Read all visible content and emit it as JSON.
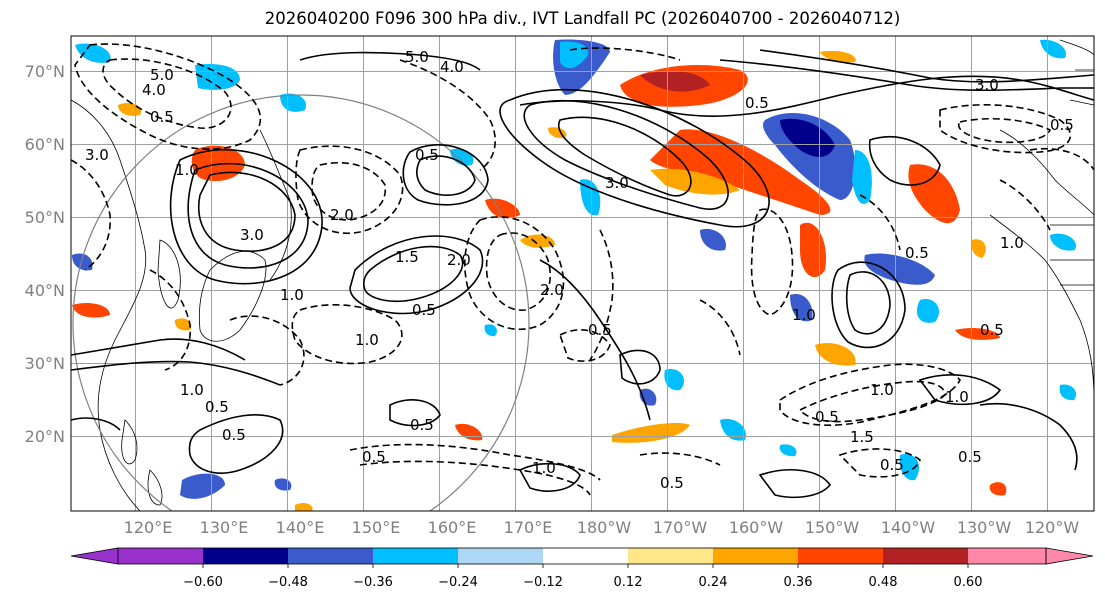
{
  "title": "2026040200 F096 300 hPa div., IVT Landfall PC (2026040700 - 2026040712)",
  "lat_ticks": [
    "70°N",
    "60°N",
    "50°N",
    "40°N",
    "30°N",
    "20°N"
  ],
  "lon_ticks": [
    "120°E",
    "130°E",
    "140°E",
    "150°E",
    "160°E",
    "170°E",
    "180°W",
    "170°W",
    "160°W",
    "150°W",
    "140°W",
    "130°W",
    "120°W"
  ],
  "colorbar": {
    "ticks": [
      "−0.60",
      "−0.48",
      "−0.36",
      "−0.24",
      "−0.12",
      "0.12",
      "0.24",
      "0.36",
      "0.48",
      "0.60"
    ],
    "colors": [
      "#9932cc",
      "#00008b",
      "#3a5bcc",
      "#00bfff",
      "#add8f5",
      "#ffffff",
      "#fee68a",
      "#ffa500",
      "#ff4500",
      "#b22222",
      "#ff88aa"
    ]
  },
  "contour_labels": [
    "5.0",
    "4.0",
    "5.0",
    "4.0",
    "0.5",
    "3.0",
    "1.0",
    "3.0",
    "2.0",
    "1.0",
    "0.5",
    "1.5",
    "2.0",
    "0.5",
    "1.0",
    "0.5",
    "0.5",
    "2.0",
    "1.0",
    "0.5",
    "0.5",
    "1.0",
    "0.5",
    "3.0",
    "0.5",
    "1.0",
    "0.5",
    "0.5",
    "1.5",
    "1.0",
    "0.5",
    "0.5",
    "0.5",
    "1.0",
    "0.5",
    "3.0",
    "1.0",
    "0.5"
  ]
}
